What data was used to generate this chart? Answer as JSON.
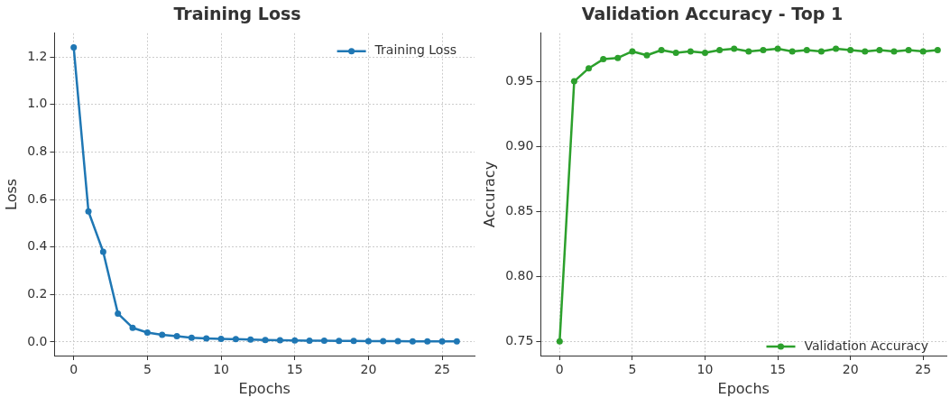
{
  "chart_data": [
    {
      "type": "line",
      "title": "Training Loss",
      "xlabel": "Epochs",
      "ylabel": "Loss",
      "x": [
        0,
        1,
        2,
        3,
        4,
        5,
        6,
        7,
        8,
        9,
        10,
        11,
        12,
        13,
        14,
        15,
        16,
        17,
        18,
        19,
        20,
        21,
        22,
        23,
        24,
        25,
        26
      ],
      "series": [
        {
          "name": "Training Loss",
          "color": "#1f77b4",
          "values": [
            1.24,
            0.55,
            0.38,
            0.12,
            0.06,
            0.04,
            0.03,
            0.025,
            0.018,
            0.015,
            0.013,
            0.012,
            0.01,
            0.009,
            0.008,
            0.007,
            0.006,
            0.006,
            0.005,
            0.005,
            0.004,
            0.004,
            0.004,
            0.003,
            0.003,
            0.003,
            0.003
          ]
        }
      ],
      "xlim": [
        -1.3,
        27.2
      ],
      "ylim": [
        -0.057,
        1.3
      ],
      "xticks": [
        0,
        5,
        10,
        15,
        20,
        25
      ],
      "yticks": [
        {
          "value": 0,
          "label": "0.0"
        },
        {
          "value": 0.2,
          "label": "0.2"
        },
        {
          "value": 0.4,
          "label": "0.4"
        },
        {
          "value": 0.6,
          "label": "0.6"
        },
        {
          "value": 0.8,
          "label": "0.8"
        },
        {
          "value": 1,
          "label": "1.0"
        },
        {
          "value": 1.2,
          "label": "1.2"
        }
      ],
      "grid": true,
      "legend": "top right",
      "marker": "circle",
      "line_style": "solid"
    },
    {
      "type": "line",
      "title": "Validation Accuracy - Top 1",
      "xlabel": "Epochs",
      "ylabel": "Accuracy",
      "x": [
        0,
        1,
        2,
        3,
        4,
        5,
        6,
        7,
        8,
        9,
        10,
        11,
        12,
        13,
        14,
        15,
        16,
        17,
        18,
        19,
        20,
        21,
        22,
        23,
        24,
        25,
        26
      ],
      "series": [
        {
          "name": "Validation Accuracy",
          "color": "#2ca02c",
          "values": [
            0.75,
            0.95,
            0.96,
            0.967,
            0.968,
            0.973,
            0.97,
            0.974,
            0.972,
            0.973,
            0.972,
            0.974,
            0.975,
            0.973,
            0.974,
            0.975,
            0.973,
            0.974,
            0.973,
            0.975,
            0.974,
            0.973,
            0.974,
            0.973,
            0.974,
            0.973,
            0.974
          ]
        }
      ],
      "xlim": [
        -1.3,
        26.6
      ],
      "ylim": [
        0.739,
        0.987
      ],
      "xticks": [
        0,
        5,
        10,
        15,
        20,
        25
      ],
      "yticks": [
        {
          "value": 0.75,
          "label": "0.75"
        },
        {
          "value": 0.8,
          "label": "0.80"
        },
        {
          "value": 0.85,
          "label": "0.85"
        },
        {
          "value": 0.9,
          "label": "0.90"
        },
        {
          "value": 0.95,
          "label": "0.95"
        }
      ],
      "grid": true,
      "legend": "bottom right",
      "marker": "circle",
      "line_style": "solid"
    }
  ]
}
